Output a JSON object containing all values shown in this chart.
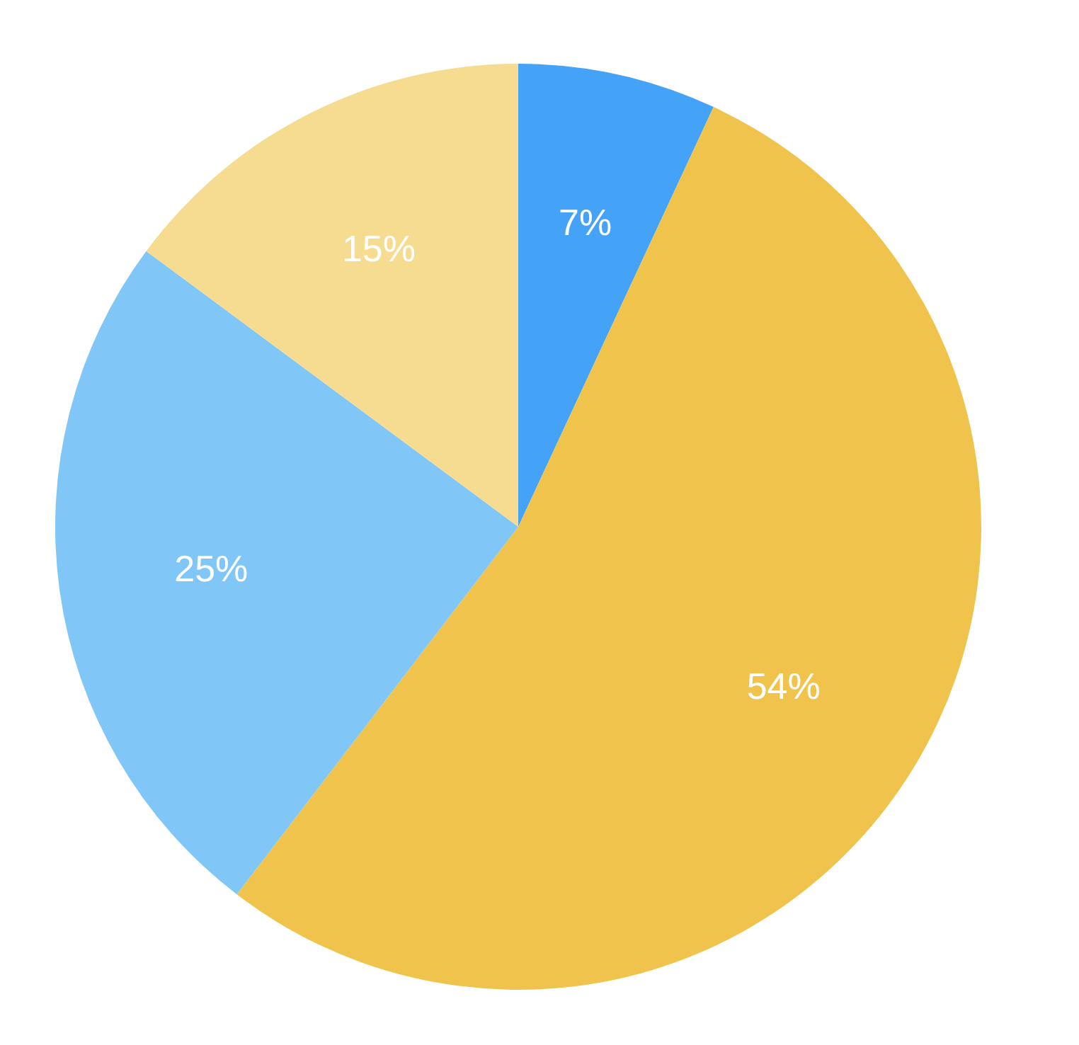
{
  "chart_data": {
    "type": "pie",
    "categories": [
      null,
      null,
      null,
      null
    ],
    "values": [
      7,
      54,
      25,
      15
    ],
    "colors": [
      "#45a3f7",
      "#f0c44c",
      "#80c6f7",
      "#f6dc90"
    ],
    "value_labels": [
      "7%",
      "54%",
      "25%",
      "15%"
    ]
  }
}
